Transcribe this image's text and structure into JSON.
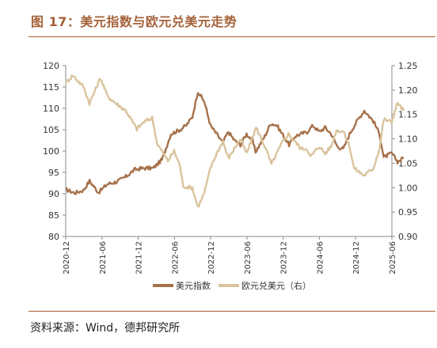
{
  "title": "图 17：美元指数与欧元兑美元走势",
  "source": "资料来源：Wind，德邦研究所",
  "chart_data": {
    "type": "line",
    "x_labels": [
      "2020-12",
      "2021-06",
      "2021-12",
      "2022-06",
      "2022-12",
      "2023-06",
      "2023-12",
      "2024-06",
      "2024-12",
      "2025-06"
    ],
    "y_left": {
      "min": 80,
      "max": 120,
      "ticks": [
        "80",
        "85",
        "90",
        "95",
        "100",
        "105",
        "110",
        "115",
        "120"
      ]
    },
    "y_right": {
      "min": 0.9,
      "max": 1.25,
      "ticks": [
        "0.90",
        "0.95",
        "1.00",
        "1.05",
        "1.10",
        "1.15",
        "1.20",
        "1.25"
      ]
    },
    "grid": false,
    "legend_position": "bottom",
    "colors": {
      "usd_index": "#a6714a",
      "eurusd": "#d9c49d",
      "title": "#a5623a"
    },
    "series": [
      {
        "name": "美元指数",
        "axis": "left",
        "points": [
          [
            "2020-12-01",
            91.0
          ],
          [
            "2021-01-15",
            90.2
          ],
          [
            "2021-02-28",
            90.8
          ],
          [
            "2021-03-31",
            93.0
          ],
          [
            "2021-05-15",
            90.3
          ],
          [
            "2021-06-30",
            92.3
          ],
          [
            "2021-08-15",
            92.8
          ],
          [
            "2021-09-30",
            94.0
          ],
          [
            "2021-11-15",
            95.7
          ],
          [
            "2021-12-31",
            96.0
          ],
          [
            "2022-02-15",
            96.0
          ],
          [
            "2022-03-31",
            98.0
          ],
          [
            "2022-05-15",
            104.0
          ],
          [
            "2022-06-30",
            105.0
          ],
          [
            "2022-07-31",
            106.0
          ],
          [
            "2022-08-31",
            108.0
          ],
          [
            "2022-09-28",
            114.0
          ],
          [
            "2022-10-31",
            111.5
          ],
          [
            "2022-11-30",
            106.0
          ],
          [
            "2022-12-31",
            104.0
          ],
          [
            "2023-01-31",
            102.0
          ],
          [
            "2023-02-28",
            104.5
          ],
          [
            "2023-03-31",
            102.5
          ],
          [
            "2023-04-30",
            101.5
          ],
          [
            "2023-05-31",
            104.0
          ],
          [
            "2023-06-30",
            102.5
          ],
          [
            "2023-07-15",
            99.8
          ],
          [
            "2023-08-31",
            103.5
          ],
          [
            "2023-09-30",
            106.5
          ],
          [
            "2023-10-31",
            106.0
          ],
          [
            "2023-12-31",
            101.5
          ],
          [
            "2024-01-31",
            103.5
          ],
          [
            "2024-02-29",
            104.0
          ],
          [
            "2024-03-31",
            104.5
          ],
          [
            "2024-04-30",
            106.0
          ],
          [
            "2024-05-31",
            104.5
          ],
          [
            "2024-06-30",
            105.5
          ],
          [
            "2024-07-31",
            104.0
          ],
          [
            "2024-08-31",
            101.0
          ],
          [
            "2024-09-30",
            100.5
          ],
          [
            "2024-10-31",
            104.0
          ],
          [
            "2024-11-30",
            106.5
          ],
          [
            "2025-01-13",
            109.5
          ],
          [
            "2025-02-28",
            107.0
          ],
          [
            "2025-03-31",
            104.0
          ],
          [
            "2025-04-21",
            98.5
          ],
          [
            "2025-05-31",
            99.5
          ],
          [
            "2025-06-30",
            97.5
          ],
          [
            "2025-07-31",
            98.5
          ]
        ]
      },
      {
        "name": "欧元兑美元（右）",
        "axis": "right",
        "points": [
          [
            "2020-12-01",
            1.215
          ],
          [
            "2021-01-06",
            1.23
          ],
          [
            "2021-02-28",
            1.207
          ],
          [
            "2021-03-31",
            1.173
          ],
          [
            "2021-05-25",
            1.225
          ],
          [
            "2021-06-30",
            1.187
          ],
          [
            "2021-08-20",
            1.17
          ],
          [
            "2021-09-30",
            1.158
          ],
          [
            "2021-11-24",
            1.12
          ],
          [
            "2021-12-31",
            1.135
          ],
          [
            "2022-02-10",
            1.143
          ],
          [
            "2022-03-07",
            1.09
          ],
          [
            "2022-04-30",
            1.055
          ],
          [
            "2022-05-31",
            1.075
          ],
          [
            "2022-06-30",
            1.045
          ],
          [
            "2022-07-15",
            1.003
          ],
          [
            "2022-08-31",
            1.0
          ],
          [
            "2022-09-28",
            0.96
          ],
          [
            "2022-10-31",
            0.99
          ],
          [
            "2022-11-30",
            1.04
          ],
          [
            "2022-12-31",
            1.07
          ],
          [
            "2023-02-01",
            1.095
          ],
          [
            "2023-02-28",
            1.06
          ],
          [
            "2023-04-30",
            1.1
          ],
          [
            "2023-05-31",
            1.07
          ],
          [
            "2023-07-18",
            1.123
          ],
          [
            "2023-08-31",
            1.085
          ],
          [
            "2023-10-03",
            1.048
          ],
          [
            "2023-11-30",
            1.095
          ],
          [
            "2023-12-28",
            1.11
          ],
          [
            "2024-02-29",
            1.08
          ],
          [
            "2024-03-31",
            1.08
          ],
          [
            "2024-04-16",
            1.063
          ],
          [
            "2024-05-31",
            1.085
          ],
          [
            "2024-06-30",
            1.07
          ],
          [
            "2024-07-31",
            1.085
          ],
          [
            "2024-08-26",
            1.118
          ],
          [
            "2024-09-30",
            1.115
          ],
          [
            "2024-10-31",
            1.085
          ],
          [
            "2024-11-22",
            1.04
          ],
          [
            "2025-01-13",
            1.025
          ],
          [
            "2025-02-28",
            1.04
          ],
          [
            "2025-03-31",
            1.082
          ],
          [
            "2025-04-21",
            1.14
          ],
          [
            "2025-05-31",
            1.135
          ],
          [
            "2025-06-30",
            1.175
          ],
          [
            "2025-07-15",
            1.165
          ],
          [
            "2025-07-31",
            1.158
          ]
        ]
      }
    ]
  }
}
